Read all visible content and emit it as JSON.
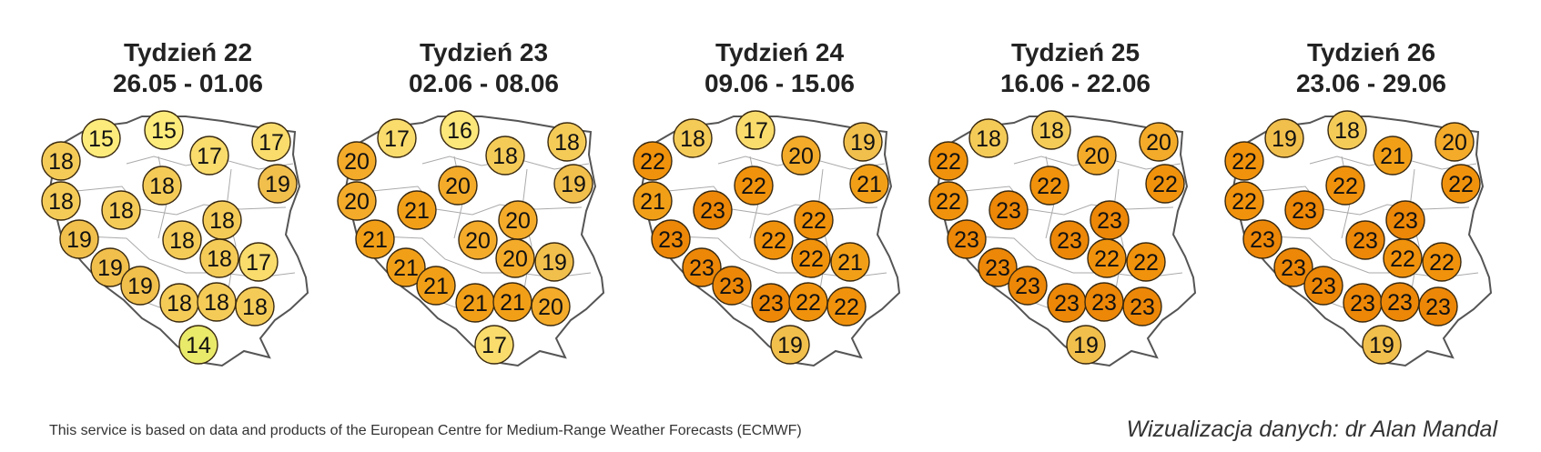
{
  "panels": [
    {
      "week": "Tydzień 22",
      "dates": "26.05 - 01.06",
      "values": [
        15,
        15,
        17,
        17,
        18,
        18,
        19,
        18,
        18,
        19,
        18,
        18,
        19,
        18,
        17,
        19,
        18,
        18,
        18,
        14
      ]
    },
    {
      "week": "Tydzień 23",
      "dates": "02.06 - 08.06",
      "values": [
        17,
        16,
        18,
        18,
        20,
        20,
        19,
        20,
        21,
        21,
        20,
        20,
        21,
        20,
        19,
        21,
        21,
        21,
        20,
        17
      ]
    },
    {
      "week": "Tydzień 24",
      "dates": "09.06 - 15.06",
      "values": [
        18,
        17,
        20,
        19,
        22,
        21,
        21,
        22,
        23,
        23,
        22,
        22,
        23,
        22,
        21,
        23,
        23,
        22,
        22,
        19
      ]
    },
    {
      "week": "Tydzień 25",
      "dates": "16.06 - 22.06",
      "values": [
        18,
        18,
        20,
        20,
        22,
        22,
        22,
        22,
        23,
        23,
        23,
        23,
        23,
        22,
        22,
        23,
        23,
        23,
        23,
        19
      ]
    },
    {
      "week": "Tydzień 26",
      "dates": "23.06 - 29.06",
      "values": [
        19,
        18,
        21,
        20,
        22,
        22,
        22,
        22,
        23,
        23,
        23,
        23,
        23,
        22,
        22,
        23,
        23,
        23,
        23,
        19
      ]
    }
  ],
  "color_scale": {
    "14": "#eaea6a",
    "15": "#fdec7c",
    "16": "#fbe77a",
    "17": "#f9dc6c",
    "18": "#f5cb58",
    "19": "#f1bf4c",
    "20": "#f4ab2a",
    "21": "#f29f18",
    "22": "#f1920c",
    "23": "#ec8708"
  },
  "footer": {
    "source": "This service is based on data and products of the European Centre for Medium-Range Weather Forecasts (ECMWF)",
    "credit": "Wizualizacja danych: dr Alan Mandal"
  }
}
